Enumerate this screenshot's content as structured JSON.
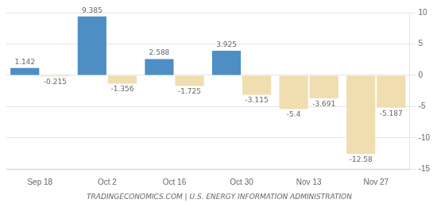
{
  "chart_data": {
    "type": "bar",
    "categories": [
      "Sep 18",
      "Oct 2",
      "Oct 16",
      "Oct 30",
      "Nov 13",
      "Nov 27"
    ],
    "series": [
      {
        "values": [
          1.142,
          9.385,
          2.588,
          3.925,
          -5.4,
          -12.58
        ],
        "colors": [
          "#4d8ec4",
          "#4d8ec4",
          "#4d8ec4",
          "#4d8ec4",
          "#f0ddb0",
          "#f0ddb0"
        ]
      },
      {
        "values": [
          -0.215,
          -1.356,
          -1.725,
          -3.115,
          -3.691,
          -5.187
        ],
        "colors": [
          "#f0ddb0",
          "#f0ddb0",
          "#f0ddb0",
          "#f0ddb0",
          "#f0ddb0",
          "#f0ddb0"
        ]
      }
    ],
    "ylim": [
      -15,
      10
    ],
    "yticks": [
      -15,
      -10,
      -5,
      0,
      5,
      10
    ],
    "grid": true,
    "data_labels": true,
    "annotations": [
      "TRADINGECONOMICS.COM | U.S. ENERGY INFORMATION ADMINISTRATION"
    ]
  }
}
